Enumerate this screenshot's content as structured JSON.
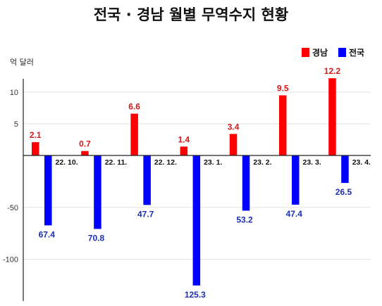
{
  "chart_data": {
    "type": "bar",
    "title": "전국 · 경남 월별 무역수지 현황",
    "ylabel": "억 달러",
    "categories": [
      "22. 10.",
      "22. 11.",
      "22. 12.",
      "23. 1.",
      "23. 2.",
      "23. 3.",
      "23. 4."
    ],
    "series": [
      {
        "name": "경남",
        "color": "#ff0000",
        "values": [
          2.1,
          0.7,
          6.6,
          1.4,
          3.4,
          9.5,
          12.2
        ],
        "labels": [
          "2.1",
          "0.7",
          "6.6",
          "1.4",
          "3.4",
          "9.5",
          "12.2"
        ]
      },
      {
        "name": "전국",
        "color": "#0000ff",
        "values": [
          -67.4,
          -70.8,
          -47.7,
          -125.3,
          -53.2,
          -47.4,
          -26.5
        ],
        "labels": [
          "67.4",
          "70.8",
          "47.7",
          "125.3",
          "53.2",
          "47.4",
          "26.5"
        ]
      }
    ],
    "yticks": [
      10,
      5,
      -50,
      -100
    ],
    "ytick_labels": [
      "10",
      "5",
      "-50",
      "-100"
    ],
    "legend_position": "top-right",
    "grid": true
  }
}
